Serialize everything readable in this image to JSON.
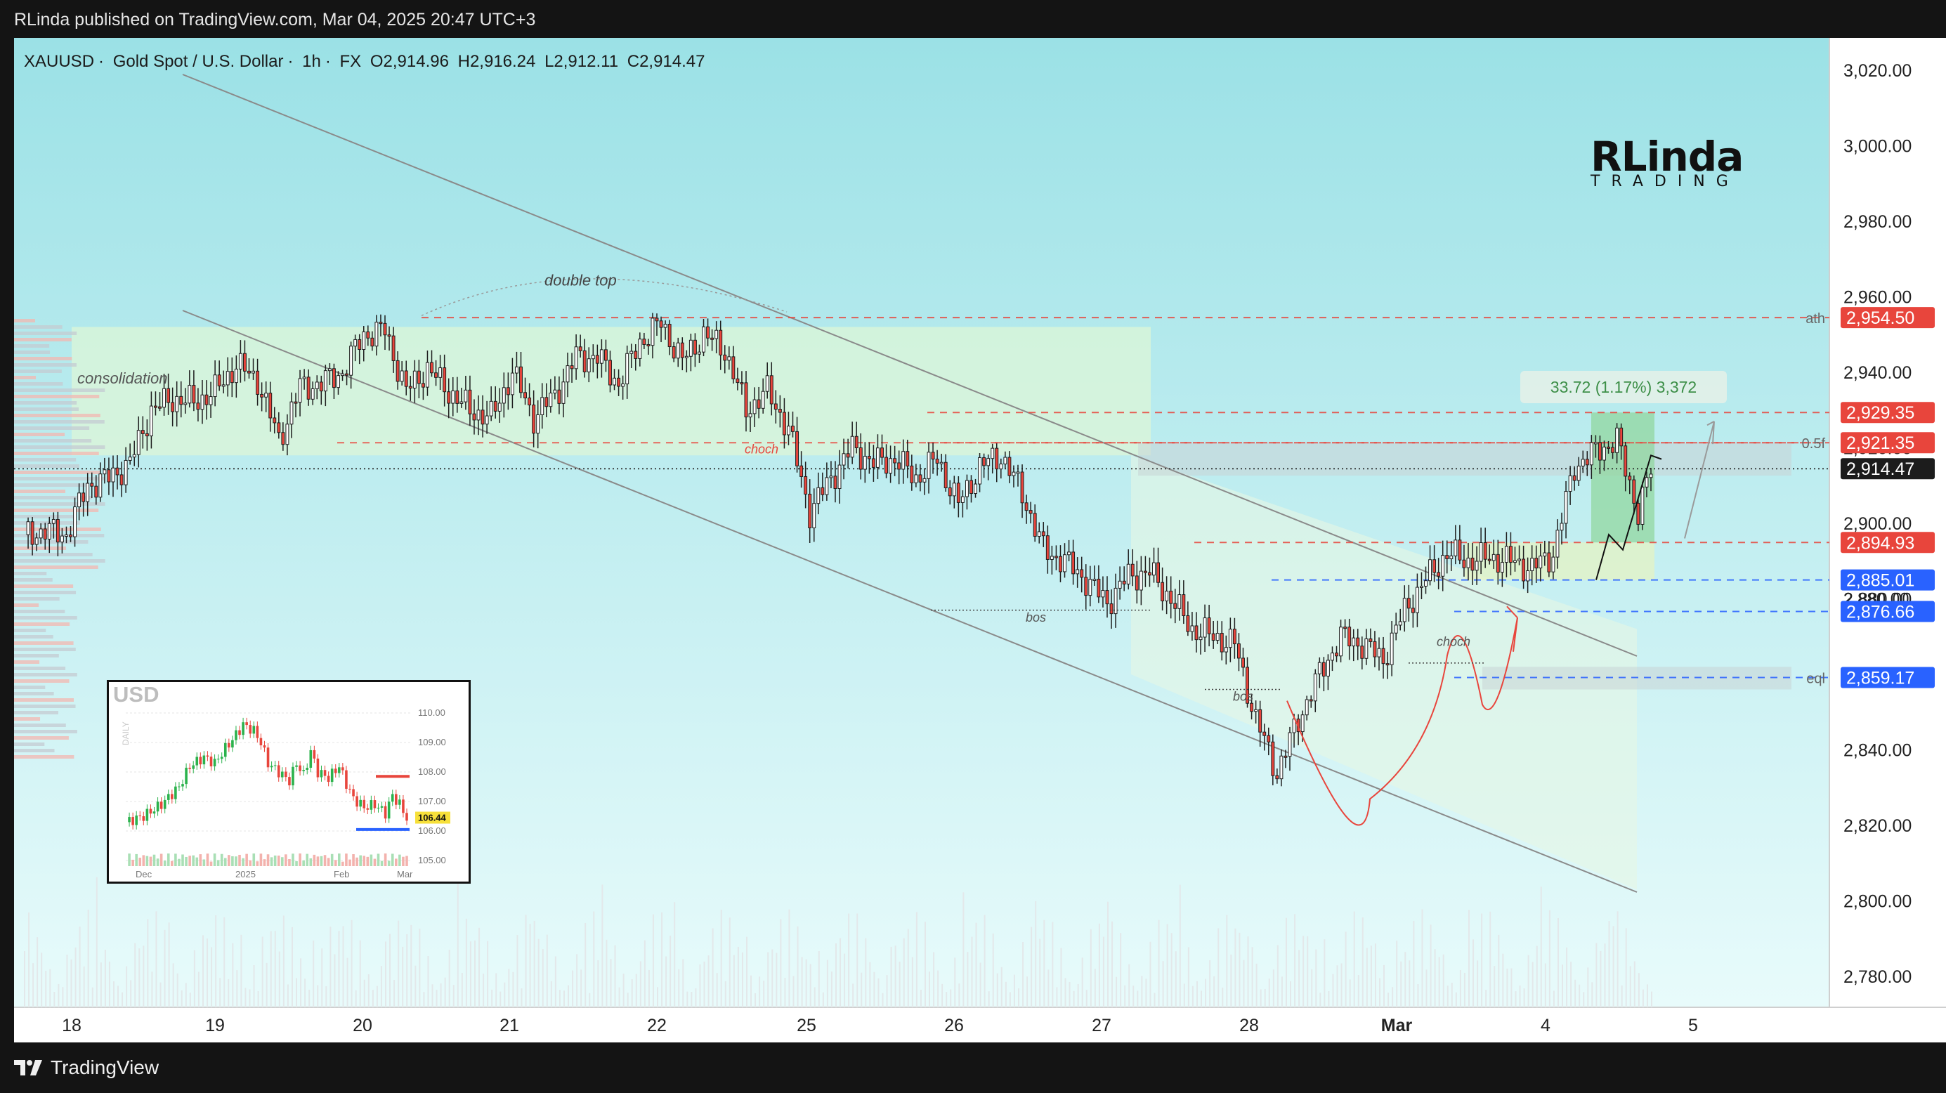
{
  "header": {
    "published_by": "RLinda published on TradingView.com, Mar 04, 2025 20:47 UTC+3"
  },
  "legend": {
    "symbol": "XAUUSD",
    "description": "Gold Spot / U.S. Dollar",
    "interval": "1h",
    "source": "FX",
    "open": "O2,914.96",
    "high": "H2,916.24",
    "low": "L2,912.11",
    "close": "C2,914.47"
  },
  "brand": {
    "big": "RLinda",
    "small": "TRADING"
  },
  "footer": {
    "logo_text": "TradingView"
  },
  "measure_label": "33.72 (1.17%) 3,372",
  "colors": {
    "bull": "#ffffff",
    "bear": "#e8453c",
    "wick": "#1e1e1e",
    "level_red": "#e8453c",
    "level_blue": "#2962ff",
    "background_top": "#9ee2e6",
    "background_bottom": "#e6fbfb"
  },
  "chart_data": {
    "type": "candlestick",
    "symbol": "XAUUSD",
    "timeframe": "1h",
    "y_axis": {
      "min": 2770,
      "max": 3030,
      "ticks": [
        "3,020.00",
        "3,000.00",
        "2,980.00",
        "2,960.00",
        "2,940.00",
        "2,920.00",
        "2,900.00",
        "2,880.00",
        "2,860.00",
        "2,840.00",
        "2,820.00",
        "2,800.00",
        "2,780.00"
      ],
      "tick_values": [
        3020,
        3000,
        2980,
        2960,
        2940,
        2920,
        2900,
        2880,
        2860,
        2840,
        2820,
        2800,
        2780
      ]
    },
    "x_axis": {
      "labels": [
        "18",
        "19",
        "20",
        "21",
        "22",
        "25",
        "26",
        "27",
        "28",
        "Mar",
        "4",
        "5"
      ],
      "bold_labels": [
        "Mar"
      ]
    },
    "price_labels": [
      {
        "value": 2954.5,
        "text": "2,954.50",
        "color": "red",
        "tag": "ath"
      },
      {
        "value": 2929.35,
        "text": "2,929.35",
        "color": "red",
        "tag": ""
      },
      {
        "value": 2921.35,
        "text": "2,921.35",
        "color": "red",
        "tag": "0.5f"
      },
      {
        "value": 2914.47,
        "text": "2,914.47",
        "color": "dark",
        "tag": ""
      },
      {
        "value": 2894.93,
        "text": "2,894.93",
        "color": "red",
        "tag": ""
      },
      {
        "value": 2885.01,
        "text": "2,885.01",
        "color": "blue",
        "tag": ""
      },
      {
        "value": 2880.0,
        "text": "2,880.00",
        "color": "hidden",
        "tag": ""
      },
      {
        "value": 2876.66,
        "text": "2,876.66",
        "color": "blue",
        "tag": ""
      },
      {
        "value": 2859.17,
        "text": "2,859.17",
        "color": "blue",
        "tag": "eql"
      }
    ],
    "annotations": [
      "consolidation",
      "double top",
      "choch",
      "bos",
      "bos",
      "choch"
    ],
    "path_points": [
      [
        0,
        2897
      ],
      [
        5,
        2898
      ],
      [
        10,
        2897
      ],
      [
        15,
        2910
      ],
      [
        20,
        2912
      ],
      [
        25,
        2916
      ],
      [
        30,
        2930
      ],
      [
        35,
        2933
      ],
      [
        40,
        2932
      ],
      [
        45,
        2935
      ],
      [
        50,
        2942
      ],
      [
        55,
        2938
      ],
      [
        60,
        2922
      ],
      [
        65,
        2936
      ],
      [
        70,
        2937
      ],
      [
        75,
        2940
      ],
      [
        80,
        2950
      ],
      [
        85,
        2951
      ],
      [
        90,
        2935
      ],
      [
        95,
        2941
      ],
      [
        100,
        2935
      ],
      [
        105,
        2930
      ],
      [
        110,
        2928
      ],
      [
        115,
        2940
      ],
      [
        120,
        2928
      ],
      [
        125,
        2934
      ],
      [
        130,
        2944
      ],
      [
        135,
        2944
      ],
      [
        140,
        2937
      ],
      [
        145,
        2948
      ],
      [
        150,
        2953
      ],
      [
        155,
        2943
      ],
      [
        160,
        2950
      ],
      [
        165,
        2946
      ],
      [
        170,
        2930
      ],
      [
        175,
        2935
      ],
      [
        180,
        2925
      ],
      [
        185,
        2903
      ],
      [
        190,
        2912
      ],
      [
        195,
        2920
      ],
      [
        200,
        2916
      ],
      [
        205,
        2917
      ],
      [
        210,
        2912
      ],
      [
        215,
        2917
      ],
      [
        220,
        2905
      ],
      [
        225,
        2915
      ],
      [
        230,
        2918
      ],
      [
        235,
        2908
      ],
      [
        240,
        2893
      ],
      [
        245,
        2890
      ],
      [
        250,
        2885
      ],
      [
        255,
        2879
      ],
      [
        260,
        2886
      ],
      [
        265,
        2887
      ],
      [
        270,
        2880
      ],
      [
        275,
        2872
      ],
      [
        280,
        2870
      ],
      [
        285,
        2868
      ],
      [
        290,
        2848
      ],
      [
        295,
        2834
      ],
      [
        300,
        2848
      ],
      [
        305,
        2860
      ],
      [
        310,
        2870
      ],
      [
        315,
        2868
      ],
      [
        320,
        2864
      ],
      [
        325,
        2877
      ],
      [
        330,
        2885
      ],
      [
        335,
        2892
      ],
      [
        340,
        2890
      ],
      [
        345,
        2891
      ],
      [
        350,
        2890
      ],
      [
        355,
        2888
      ],
      [
        360,
        2892
      ],
      [
        365,
        2915
      ],
      [
        370,
        2919
      ],
      [
        375,
        2922
      ],
      [
        380,
        2903
      ],
      [
        383,
        2914
      ]
    ]
  },
  "inset": {
    "title": "USD",
    "y_labels": [
      "110.00",
      "109.00",
      "108.00",
      "107.00",
      "106.44",
      "106.00",
      "105.00"
    ],
    "x_labels": [
      "Dec",
      "2025",
      "Feb",
      "Mar"
    ],
    "side_label": "DAILY",
    "path_points": [
      [
        0,
        106.3
      ],
      [
        5,
        106.5
      ],
      [
        10,
        106.9
      ],
      [
        15,
        107.5
      ],
      [
        18,
        108.2
      ],
      [
        22,
        108.5
      ],
      [
        25,
        108.3
      ],
      [
        28,
        108.8
      ],
      [
        30,
        109.1
      ],
      [
        33,
        109.6
      ],
      [
        36,
        109.4
      ],
      [
        38,
        109.0
      ],
      [
        40,
        108.3
      ],
      [
        43,
        108.0
      ],
      [
        46,
        107.7
      ],
      [
        48,
        108.3
      ],
      [
        50,
        107.9
      ],
      [
        52,
        108.7
      ],
      [
        54,
        108.0
      ],
      [
        57,
        107.8
      ],
      [
        60,
        108.2
      ],
      [
        62,
        107.6
      ],
      [
        64,
        107.1
      ],
      [
        67,
        106.8
      ],
      [
        70,
        106.9
      ],
      [
        73,
        106.6
      ],
      [
        75,
        107.2
      ],
      [
        77,
        106.9
      ],
      [
        79,
        106.44
      ]
    ]
  }
}
